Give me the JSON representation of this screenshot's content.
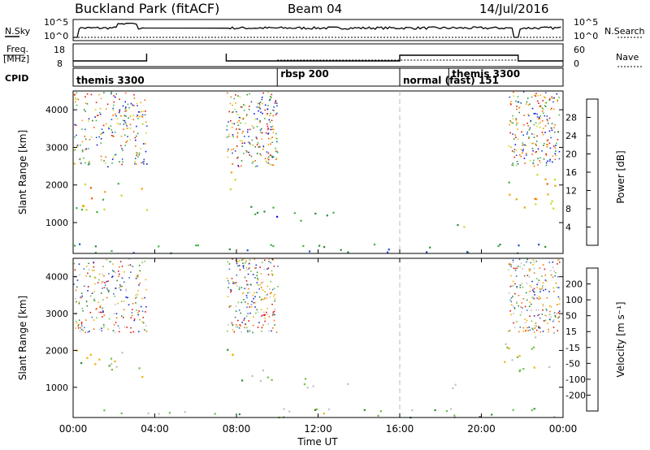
{
  "header": {
    "title": "Buckland Park (fitACF)",
    "beam": "Beam 04",
    "date": "14/Jul/2016"
  },
  "noise_panel": {
    "left_label": "N.Sky",
    "left_ticks": [
      "10^5",
      "10^0"
    ],
    "right_ticks": [
      "10^5",
      "10^0"
    ],
    "right_label": "N.Search"
  },
  "freq_panel": {
    "left_label_1": "Freq.",
    "left_label_2": "[MHz]",
    "left_ticks": [
      "18",
      "8"
    ],
    "right_ticks": [
      "60",
      "0"
    ],
    "right_label": "Nave"
  },
  "cpid_panel": {
    "label": "CPID",
    "segments": [
      {
        "label": "themis 3300",
        "start_h": 0.0
      },
      {
        "label": "rbsp 200",
        "start_h": 10.0
      },
      {
        "label": "normal (fast) 151",
        "start_h": 16.0
      },
      {
        "label": "themis 3300",
        "start_h": 18.4
      }
    ]
  },
  "x_axis": {
    "label": "Time UT",
    "ticks": [
      "00:00",
      "04:00",
      "08:00",
      "12:00",
      "16:00",
      "20:00",
      "00:00"
    ]
  },
  "power_panel": {
    "ylabel": "Slant Range [km]",
    "yticks": [
      "4000",
      "3000",
      "2000",
      "1000"
    ],
    "colorbar_label": "Power [dB]",
    "colorbar_ticks": [
      "28",
      "24",
      "20",
      "16",
      "12",
      "8",
      "4"
    ],
    "colors": [
      "#0a14e0",
      "#1e4fc8",
      "#2d8a3a",
      "#3ab545",
      "#c8d820",
      "#f0a000",
      "#f06000",
      "#e01010"
    ]
  },
  "velocity_panel": {
    "ylabel": "Slant Range [km]",
    "yticks": [
      "4000",
      "3000",
      "2000",
      "1000"
    ],
    "colorbar_label": "Velocity [m s⁻¹]",
    "colorbar_ticks": [
      "200",
      "100",
      "50",
      "15",
      "-15",
      "-50",
      "-100",
      "-200"
    ],
    "colors": [
      "#1a2bc0",
      "#3a6fd0",
      "#2d8a3a",
      "#6cc04a",
      "#c0c0c0",
      "#f0b000",
      "#f07000",
      "#e01010"
    ]
  },
  "chart_data": {
    "type": "heatmap",
    "title": "Buckland Park (fitACF)",
    "xlabel": "Time UT",
    "ylabel": "Slant Range [km]",
    "xlim_hours": [
      0,
      24
    ],
    "ylim_km": [
      180,
      4500
    ],
    "series": [
      {
        "name": "Power [dB]",
        "range": [
          0,
          30
        ]
      },
      {
        "name": "Velocity [m s⁻¹]",
        "range": [
          -250,
          250
        ]
      }
    ],
    "data_gaps_hours": [
      [
        3.6,
        7.5
      ]
    ],
    "scatter_regions": [
      {
        "t_start": 0.0,
        "t_end": 3.6,
        "range_km": [
          1300,
          2100
        ],
        "power_db": 18,
        "velocity": -10
      },
      {
        "t_start": 7.5,
        "t_end": 8.0,
        "range_km": [
          1500,
          2500
        ],
        "power_db": 16,
        "velocity": -10
      },
      {
        "t_start": 8.0,
        "t_end": 10.0,
        "range_km": [
          1000,
          1500
        ],
        "power_db": 8,
        "velocity": 0
      },
      {
        "t_start": 10.5,
        "t_end": 13.5,
        "range_km": [
          1000,
          1300
        ],
        "power_db": 10,
        "velocity": 60
      },
      {
        "t_start": 18.5,
        "t_end": 19.2,
        "range_km": [
          800,
          1200
        ],
        "power_db": 14,
        "velocity": -70
      },
      {
        "t_start": 21.0,
        "t_end": 23.7,
        "range_km": [
          1400,
          2500
        ],
        "power_db": 20,
        "velocity": -5
      },
      {
        "t_start": 0.0,
        "t_end": 24.0,
        "range_km": [
          200,
          450
        ],
        "power_db": 10,
        "velocity": 20
      }
    ]
  }
}
